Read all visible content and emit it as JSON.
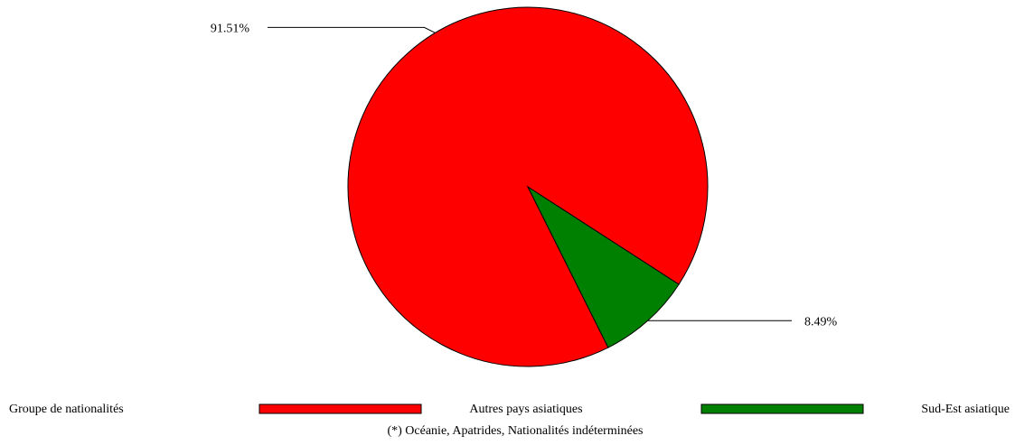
{
  "chart_data": {
    "type": "pie",
    "title": "",
    "legend_title": "Groupe de nationalités",
    "legend_position": "bottom",
    "footnote": "(*) Océanie, Apatrides, Nationalités indéterminées",
    "slices": [
      {
        "label": "Autres pays asiatiques",
        "value": 91.51,
        "display": "91.51%",
        "color": "#ff0000"
      },
      {
        "label": "Sud-Est asiatique",
        "value": 8.49,
        "display": "8.49%",
        "color": "#008000"
      }
    ]
  }
}
